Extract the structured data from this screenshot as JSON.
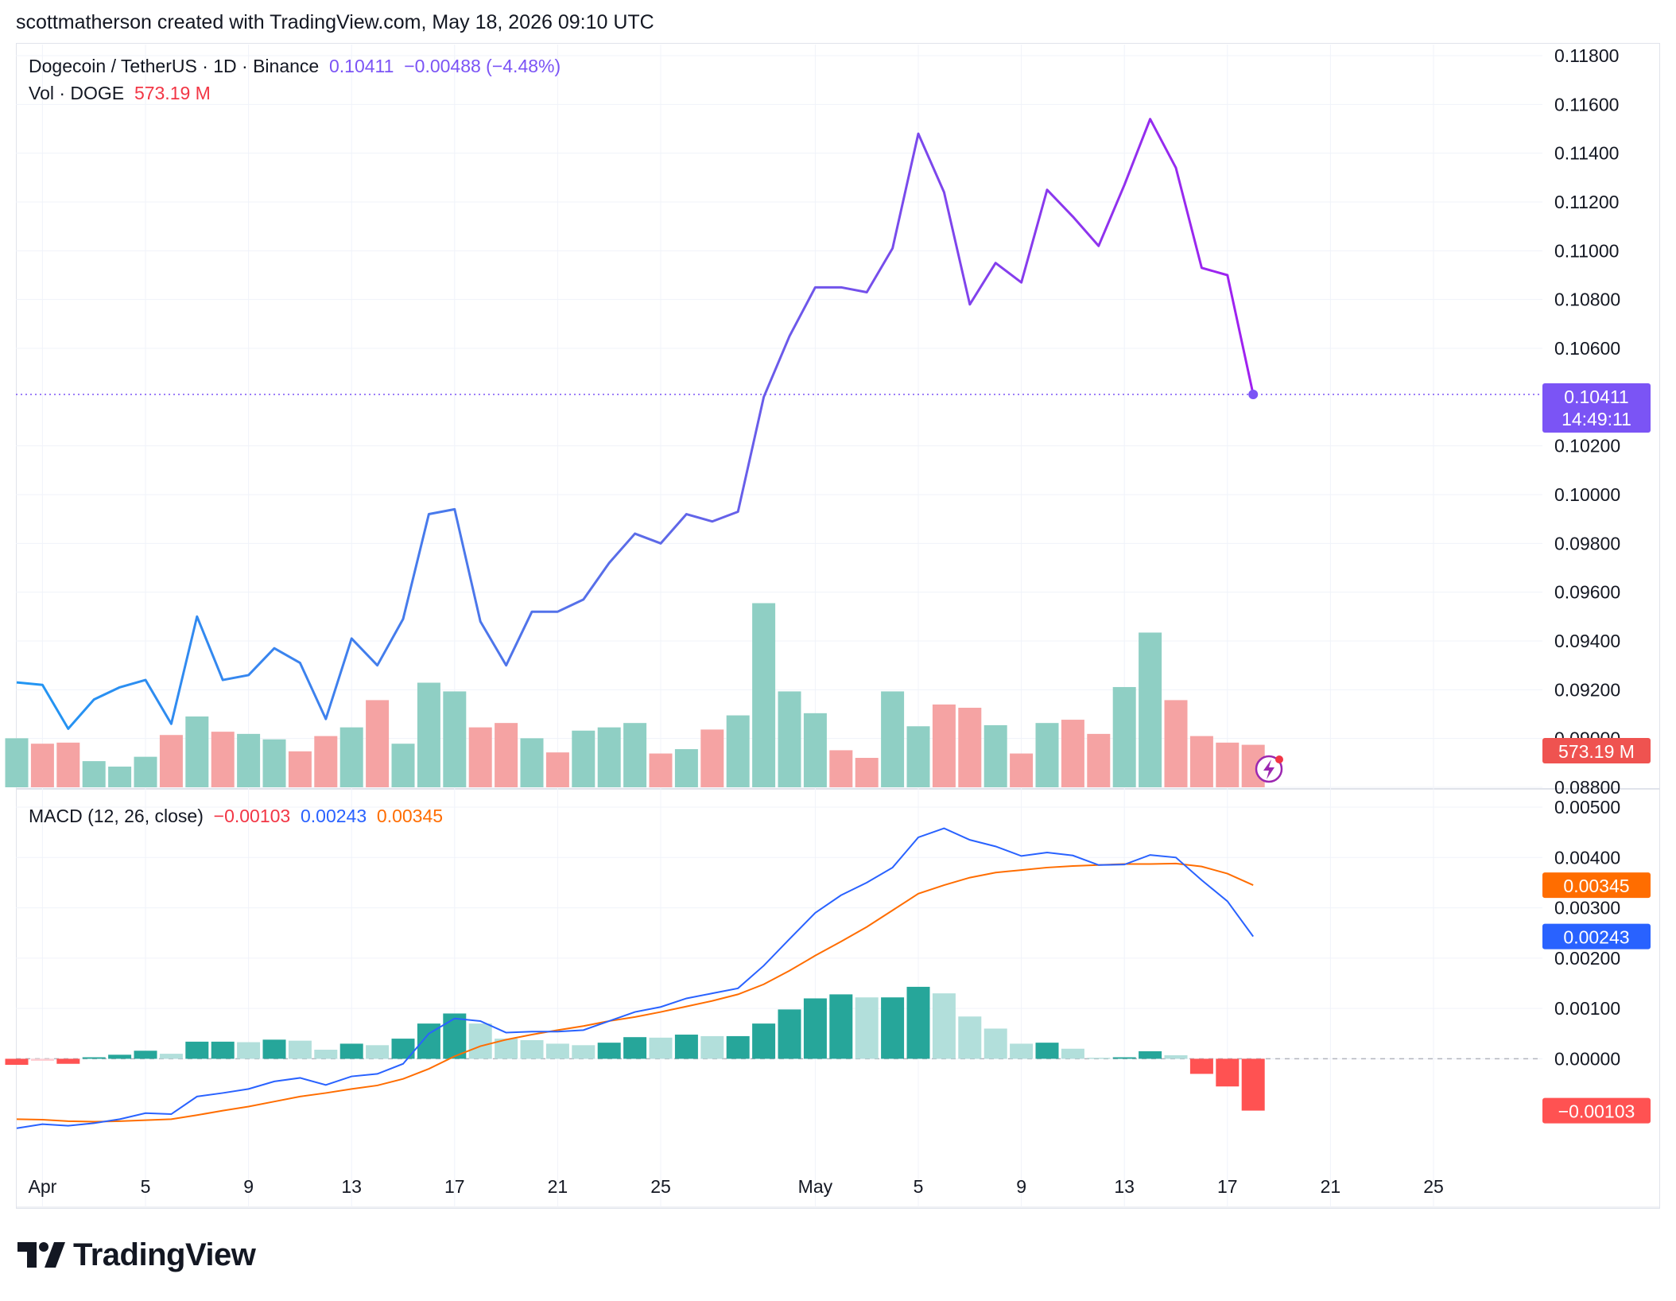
{
  "header": {
    "text": "scottmatherson created with TradingView.com, May 18, 2026 09:10 UTC"
  },
  "legend": {
    "symbol": "Dogecoin / TetherUS · 1D · Binance",
    "price": "0.10411",
    "change": "−0.00488 (−4.48%)",
    "vol_label": "Vol · DOGE",
    "vol_value": "573.19 M",
    "macd_label": "MACD (12, 26, close)",
    "macd_hist": "−0.00103",
    "macd_line": "0.00243",
    "macd_signal": "0.00345"
  },
  "badges": {
    "price": "0.10411",
    "countdown": "14:49:11",
    "volume": "573.19 M",
    "signal": "0.00345",
    "macd": "0.00243",
    "hist": "−0.00103"
  },
  "colors": {
    "line_start": "#2196f3",
    "line_end": "#a020f0",
    "vol_up": "#8fcfc4",
    "vol_down": "#f5a3a3",
    "macd_line": "#2962ff",
    "signal_line": "#ff6d00",
    "hist_up_strong": "#26a69a",
    "hist_up_weak": "#b2dfdb",
    "hist_down_strong": "#ff5252",
    "hist_down_weak": "#ffcdd2",
    "price_badge": "#7b54f5",
    "vol_badge": "#ef5350"
  },
  "chart_data": {
    "type": "line",
    "x": [
      "Mar 31",
      "Apr 1",
      "Apr 2",
      "Apr 3",
      "Apr 4",
      "Apr 5",
      "Apr 6",
      "Apr 7",
      "Apr 8",
      "Apr 9",
      "Apr 10",
      "Apr 11",
      "Apr 12",
      "Apr 13",
      "Apr 14",
      "Apr 15",
      "Apr 16",
      "Apr 17",
      "Apr 18",
      "Apr 19",
      "Apr 20",
      "Apr 21",
      "Apr 22",
      "Apr 23",
      "Apr 24",
      "Apr 25",
      "Apr 26",
      "Apr 27",
      "Apr 28",
      "Apr 29",
      "Apr 30",
      "May 1",
      "May 2",
      "May 3",
      "May 4",
      "May 5",
      "May 6",
      "May 7",
      "May 8",
      "May 9",
      "May 10",
      "May 11",
      "May 12",
      "May 13",
      "May 14",
      "May 15",
      "May 16",
      "May 17",
      "May 18"
    ],
    "price": {
      "values": [
        0.0923,
        0.0922,
        0.0904,
        0.0916,
        0.0921,
        0.0924,
        0.0906,
        0.095,
        0.0924,
        0.0926,
        0.0937,
        0.0931,
        0.0908,
        0.0941,
        0.093,
        0.0949,
        0.0992,
        0.0994,
        0.0948,
        0.093,
        0.0952,
        0.0952,
        0.0957,
        0.0972,
        0.0984,
        0.098,
        0.0992,
        0.0989,
        0.0993,
        0.104,
        0.1065,
        0.1085,
        0.1085,
        0.1083,
        0.1101,
        0.1148,
        0.1124,
        0.1078,
        0.1095,
        0.1087,
        0.1125,
        0.1114,
        0.1102,
        0.1127,
        0.1154,
        0.1134,
        0.1093,
        0.109,
        0.10411
      ],
      "ylim": [
        0.088,
        0.118
      ],
      "yticks": [
        "0.11800",
        "0.11600",
        "0.11400",
        "0.11200",
        "0.11000",
        "0.10800",
        "0.10600",
        "0.10200",
        "0.10000",
        "0.09800",
        "0.09600",
        "0.09400",
        "0.09200",
        "0.09000",
        "0.08800"
      ]
    },
    "volume": {
      "values": [
        45,
        40,
        41,
        24,
        19,
        28,
        48,
        65,
        51,
        49,
        44,
        33,
        47,
        55,
        80,
        40,
        96,
        88,
        55,
        59,
        45,
        32,
        52,
        55,
        59,
        31,
        35,
        53,
        66,
        169,
        88,
        68,
        34,
        27,
        88,
        56,
        76,
        73,
        57,
        31,
        59,
        62,
        49,
        92,
        142,
        80,
        47,
        41,
        39
      ],
      "up": [
        true,
        false,
        false,
        true,
        true,
        true,
        false,
        true,
        false,
        true,
        true,
        false,
        false,
        true,
        false,
        true,
        true,
        true,
        false,
        false,
        true,
        false,
        true,
        true,
        true,
        false,
        true,
        false,
        true,
        true,
        true,
        true,
        false,
        false,
        true,
        true,
        false,
        false,
        true,
        false,
        true,
        false,
        false,
        true,
        true,
        false,
        false,
        false,
        false
      ]
    },
    "macd": {
      "macd": [
        -0.00138,
        -0.0013,
        -0.00133,
        -0.00128,
        -0.0012,
        -0.00108,
        -0.0011,
        -0.00075,
        -0.00068,
        -0.0006,
        -0.00045,
        -0.00038,
        -0.00052,
        -0.00035,
        -0.0003,
        -0.0001,
        0.0005,
        0.0008,
        0.00075,
        0.00052,
        0.00054,
        0.00054,
        0.00057,
        0.00075,
        0.00093,
        0.00103,
        0.0012,
        0.0013,
        0.0014,
        0.00185,
        0.00238,
        0.0029,
        0.00325,
        0.0035,
        0.0038,
        0.0044,
        0.00458,
        0.00435,
        0.00422,
        0.00403,
        0.0041,
        0.00404,
        0.00385,
        0.00386,
        0.00405,
        0.004,
        0.00355,
        0.00313,
        0.00243
      ],
      "signal": [
        -0.0012,
        -0.00121,
        -0.00124,
        -0.00125,
        -0.00124,
        -0.00122,
        -0.0012,
        -0.00112,
        -0.00103,
        -0.00095,
        -0.00085,
        -0.00075,
        -0.00068,
        -0.0006,
        -0.00053,
        -0.0004,
        -0.0002,
        5e-05,
        0.00025,
        0.00038,
        0.00048,
        0.00057,
        0.00065,
        0.00075,
        0.00083,
        0.00093,
        0.00104,
        0.00115,
        0.00128,
        0.00148,
        0.00175,
        0.00205,
        0.00233,
        0.00262,
        0.00295,
        0.00328,
        0.00345,
        0.0036,
        0.0037,
        0.00375,
        0.0038,
        0.00383,
        0.00385,
        0.00387,
        0.00387,
        0.00388,
        0.00382,
        0.00368,
        0.00345
      ],
      "hist": [
        -0.00012,
        -4e-05,
        -0.0001,
        3e-05,
        8e-05,
        0.00016,
        0.0001,
        0.00034,
        0.00034,
        0.00033,
        0.00038,
        0.00036,
        0.00018,
        0.0003,
        0.00027,
        0.0004,
        0.0007,
        0.0009,
        0.0007,
        0.0004,
        0.00037,
        0.0003,
        0.00027,
        0.00032,
        0.00043,
        0.00042,
        0.00048,
        0.00045,
        0.00045,
        0.0007,
        0.00098,
        0.0012,
        0.00128,
        0.00122,
        0.00122,
        0.00143,
        0.0013,
        0.00084,
        0.0006,
        0.0003,
        0.00032,
        0.0002,
        2e-05,
        3e-05,
        0.00015,
        7e-05,
        -0.0003,
        -0.00055,
        -0.00103
      ],
      "ylim": [
        -0.0014,
        0.005
      ],
      "yticks": [
        "0.00500",
        "0.00400",
        "0.00300",
        "0.00200",
        "0.00100",
        "0.00000"
      ]
    },
    "xticks": [
      {
        "i": 1,
        "label": "Apr"
      },
      {
        "i": 5,
        "label": "5"
      },
      {
        "i": 9,
        "label": "9"
      },
      {
        "i": 13,
        "label": "13"
      },
      {
        "i": 17,
        "label": "17"
      },
      {
        "i": 21,
        "label": "21"
      },
      {
        "i": 25,
        "label": "25"
      },
      {
        "i": 31,
        "label": "May"
      },
      {
        "i": 35,
        "label": "5"
      },
      {
        "i": 39,
        "label": "9"
      },
      {
        "i": 43,
        "label": "13"
      },
      {
        "i": 47,
        "label": "17"
      },
      {
        "i": 51,
        "label": "21"
      },
      {
        "i": 55,
        "label": "25"
      }
    ]
  },
  "logo": {
    "text": "TradingView",
    "icon": "tradingview-logo-icon"
  }
}
